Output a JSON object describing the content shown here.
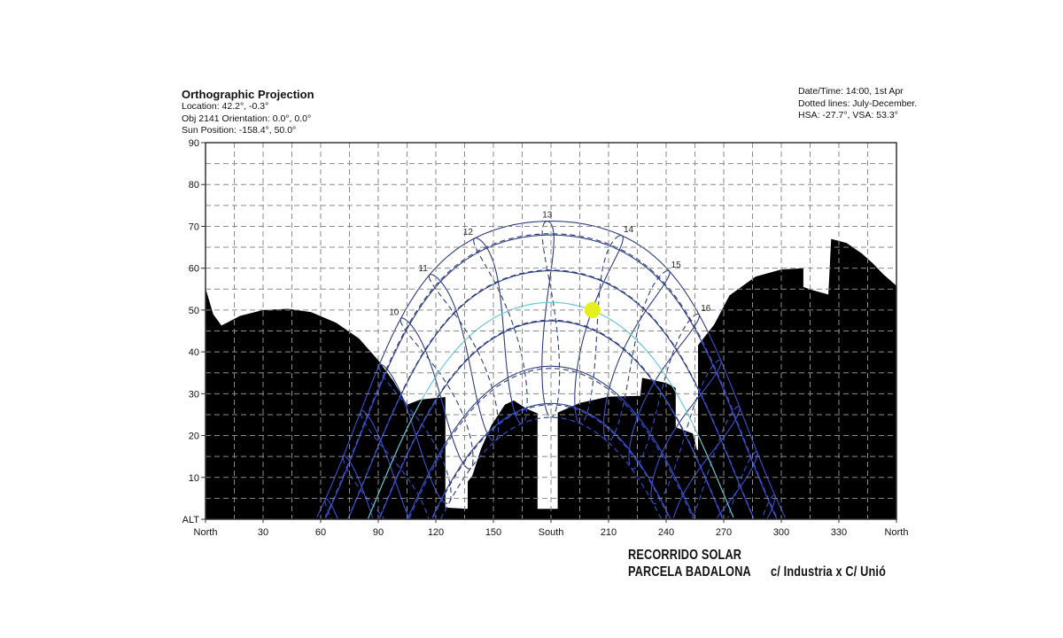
{
  "header": {
    "title": "Orthographic Projection",
    "location": "Location: 42.2°, -0.3°",
    "orientation": "Obj 2141 Orientation: 0.0°, 0.0°",
    "sun_position": "Sun Position: -158.4°, 50.0°"
  },
  "info": {
    "datetime": "Date/Time: 14:00, 1st Apr",
    "dotted": "Dotted lines: July-December.",
    "angles": "HSA: -27.7°, VSA: 53.3°"
  },
  "caption": {
    "line1": "RECORRIDO SOLAR",
    "line2": "PARCELA BADALONA",
    "address": "c/ Industria x C/ Unió"
  },
  "chart_data": {
    "type": "line",
    "subtype": "sun-path-diagram",
    "latitude": 42.2,
    "longitude": -0.3,
    "xlim": [
      0,
      360
    ],
    "ylim": [
      0,
      90
    ],
    "grid": {
      "on": true,
      "x_step": 15,
      "y_step": 5,
      "style": "dashed"
    },
    "x_ticks": [
      {
        "value": 0,
        "label": "North"
      },
      {
        "value": 30,
        "label": "30"
      },
      {
        "value": 60,
        "label": "60"
      },
      {
        "value": 90,
        "label": "90"
      },
      {
        "value": 120,
        "label": "120"
      },
      {
        "value": 150,
        "label": "150"
      },
      {
        "value": 180,
        "label": "South"
      },
      {
        "value": 210,
        "label": "210"
      },
      {
        "value": 240,
        "label": "240"
      },
      {
        "value": 270,
        "label": "270"
      },
      {
        "value": 300,
        "label": "300"
      },
      {
        "value": 330,
        "label": "330"
      },
      {
        "value": 360,
        "label": "North"
      }
    ],
    "y_ticks": [
      {
        "value": 0,
        "label": "ALT"
      },
      {
        "value": 10,
        "label": "10"
      },
      {
        "value": 20,
        "label": "20"
      },
      {
        "value": 30,
        "label": "30"
      },
      {
        "value": 40,
        "label": "40"
      },
      {
        "value": 50,
        "label": "50"
      },
      {
        "value": 60,
        "label": "60"
      },
      {
        "value": 70,
        "label": "70"
      },
      {
        "value": 80,
        "label": "80"
      },
      {
        "value": 90,
        "label": "90"
      }
    ],
    "month_paths": [
      {
        "month": "Jan",
        "day": 21,
        "style": "solid"
      },
      {
        "month": "Feb",
        "day": 21,
        "style": "solid"
      },
      {
        "month": "Mar",
        "day": 21,
        "style": "solid"
      },
      {
        "month": "Apr",
        "day": 21,
        "style": "solid"
      },
      {
        "month": "May",
        "day": 21,
        "style": "solid"
      },
      {
        "month": "Jun",
        "day": 21,
        "style": "solid"
      },
      {
        "month": "Jul",
        "day": 21,
        "style": "dashed"
      },
      {
        "month": "Aug",
        "day": 21,
        "style": "dashed"
      },
      {
        "month": "Sep",
        "day": 21,
        "style": "dashed"
      },
      {
        "month": "Oct",
        "day": 21,
        "style": "dashed"
      },
      {
        "month": "Nov",
        "day": 21,
        "style": "dashed"
      },
      {
        "month": "Dec",
        "day": 21,
        "style": "dashed"
      }
    ],
    "hour_lines": [
      5,
      6,
      7,
      8,
      9,
      10,
      11,
      12,
      13,
      14,
      15,
      16,
      17,
      18,
      19,
      20,
      21
    ],
    "hour_labels": [
      "10",
      "11",
      "12",
      "13",
      "14",
      "15",
      "16"
    ],
    "current_day": {
      "date": "1st Apr",
      "color": "#6cc9d6"
    },
    "sun": {
      "azimuth": 201.6,
      "altitude": 50.0,
      "color": "#e4ef1c"
    },
    "obstruction": [
      [
        0,
        0
      ],
      [
        0,
        55.2
      ],
      [
        4,
        49
      ],
      [
        8.3,
        46.3
      ],
      [
        18,
        48.6
      ],
      [
        30,
        50
      ],
      [
        43,
        50.3
      ],
      [
        55,
        49.5
      ],
      [
        68,
        47
      ],
      [
        80,
        43.2
      ],
      [
        90,
        38
      ],
      [
        98,
        33
      ],
      [
        105,
        27.4
      ],
      [
        112,
        28.6
      ],
      [
        125,
        29.2
      ],
      [
        125,
        2.8
      ],
      [
        136.6,
        2.5
      ],
      [
        136.6,
        9
      ],
      [
        139,
        10.4
      ],
      [
        143.5,
        16.8
      ],
      [
        149,
        22.5
      ],
      [
        156,
        27.4
      ],
      [
        160.6,
        28.4
      ],
      [
        167,
        26.5
      ],
      [
        173,
        25.3
      ],
      [
        173,
        2.5
      ],
      [
        183.5,
        2.5
      ],
      [
        183.5,
        25.5
      ],
      [
        195,
        27.8
      ],
      [
        210,
        29.3
      ],
      [
        226.5,
        29.5
      ],
      [
        227.5,
        33.8
      ],
      [
        240,
        32.6
      ],
      [
        245,
        31.4
      ],
      [
        245,
        22
      ],
      [
        254,
        20.5
      ],
      [
        256,
        16.6
      ],
      [
        256.6,
        16.6
      ],
      [
        256.6,
        41.6
      ],
      [
        265,
        46.5
      ],
      [
        273,
        53.5
      ],
      [
        286.6,
        58
      ],
      [
        300,
        59.7
      ],
      [
        311.5,
        60
      ],
      [
        311.5,
        55.5
      ],
      [
        316,
        54.8
      ],
      [
        324.5,
        53.7
      ],
      [
        326,
        67
      ],
      [
        334,
        66
      ],
      [
        342,
        63.5
      ],
      [
        348,
        61
      ],
      [
        353,
        58.6
      ],
      [
        360,
        55.8
      ],
      [
        360,
        0
      ]
    ],
    "colors": {
      "path_sky": "#2c3d80",
      "path_obstructed": "#3a4fd0",
      "obstruction": "#000000",
      "grid": "#8a8a8a"
    }
  }
}
